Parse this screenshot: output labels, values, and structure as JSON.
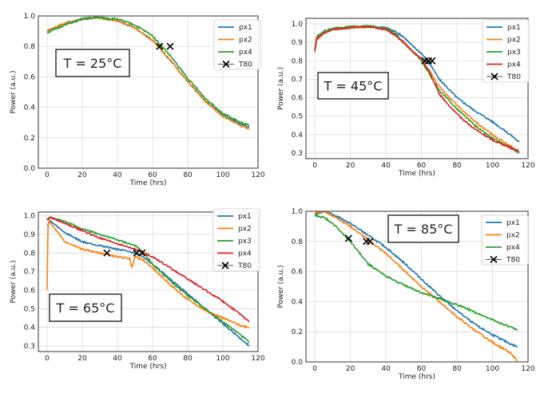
{
  "chart_data": [
    {
      "type": "line",
      "title": "T = 25°C",
      "xlabel": "Time (hrs)",
      "ylabel": "Power (a.u.)",
      "xlim": [
        -5,
        120
      ],
      "ylim": [
        0.0,
        1.0
      ],
      "xticks": [
        "0",
        "20",
        "40",
        "60",
        "80",
        "100",
        "120"
      ],
      "yticks": [
        "0.0",
        "0.2",
        "0.4",
        "0.6",
        "0.8",
        "1.0"
      ],
      "legend_location": "top-right",
      "series": [
        {
          "name": "px1",
          "color": "#1f77b4",
          "x": [
            0,
            10,
            20,
            28,
            40,
            50,
            60,
            70,
            80,
            90,
            100,
            110,
            115
          ],
          "y": [
            0.9,
            0.95,
            0.98,
            0.99,
            0.97,
            0.92,
            0.84,
            0.71,
            0.57,
            0.44,
            0.35,
            0.29,
            0.27
          ]
        },
        {
          "name": "px2",
          "color": "#ff7f0e",
          "x": [
            0,
            10,
            20,
            28,
            40,
            50,
            60,
            70,
            80,
            90,
            100,
            110,
            115
          ],
          "y": [
            0.9,
            0.95,
            0.98,
            0.99,
            0.97,
            0.92,
            0.84,
            0.71,
            0.57,
            0.44,
            0.34,
            0.28,
            0.26
          ]
        },
        {
          "name": "px4",
          "color": "#2ca02c",
          "x": [
            0,
            10,
            20,
            28,
            40,
            50,
            60,
            70,
            80,
            90,
            100,
            110,
            115
          ],
          "y": [
            0.89,
            0.94,
            0.98,
            0.99,
            0.98,
            0.94,
            0.87,
            0.74,
            0.59,
            0.46,
            0.36,
            0.3,
            0.28
          ]
        }
      ],
      "t80": {
        "name": "T80",
        "x": [
          64,
          70
        ],
        "y": [
          0.8,
          0.8
        ]
      }
    },
    {
      "type": "line",
      "title": "T = 45°C",
      "xlabel": "Time (hrs)",
      "ylabel": "Power (a.u.)",
      "xlim": [
        -5,
        120
      ],
      "ylim": [
        0.27,
        1.03
      ],
      "xticks": [
        "0",
        "20",
        "40",
        "60",
        "80",
        "100",
        "120"
      ],
      "yticks": [
        "0.3",
        "0.4",
        "0.5",
        "0.6",
        "0.7",
        "0.8",
        "0.9",
        "1.0"
      ],
      "legend_location": "top-right",
      "series": [
        {
          "name": "px1",
          "color": "#1f77b4",
          "x": [
            0,
            1,
            5,
            10,
            20,
            30,
            40,
            45,
            50,
            55,
            60,
            65,
            70,
            80,
            90,
            100,
            110,
            115
          ],
          "y": [
            0.85,
            0.92,
            0.95,
            0.97,
            0.98,
            0.985,
            0.98,
            0.96,
            0.93,
            0.88,
            0.84,
            0.78,
            0.7,
            0.6,
            0.53,
            0.47,
            0.4,
            0.36
          ]
        },
        {
          "name": "px2",
          "color": "#ff7f0e",
          "x": [
            0,
            1,
            5,
            10,
            20,
            30,
            40,
            45,
            50,
            55,
            60,
            65,
            70,
            80,
            90,
            100,
            110,
            115
          ],
          "y": [
            0.85,
            0.91,
            0.95,
            0.97,
            0.98,
            0.985,
            0.97,
            0.94,
            0.9,
            0.85,
            0.81,
            0.74,
            0.66,
            0.56,
            0.47,
            0.4,
            0.34,
            0.31
          ]
        },
        {
          "name": "px3",
          "color": "#2ca02c",
          "x": [
            0,
            1,
            5,
            10,
            20,
            30,
            40,
            45,
            50,
            55,
            60,
            65,
            70,
            80,
            90,
            100,
            110,
            115
          ],
          "y": [
            0.86,
            0.93,
            0.96,
            0.975,
            0.985,
            0.99,
            0.975,
            0.95,
            0.9,
            0.85,
            0.8,
            0.72,
            0.64,
            0.54,
            0.45,
            0.38,
            0.33,
            0.3
          ]
        },
        {
          "name": "px4",
          "color": "#d62728",
          "x": [
            0,
            1,
            5,
            10,
            20,
            30,
            40,
            45,
            50,
            55,
            60,
            65,
            70,
            80,
            90,
            100,
            110,
            115
          ],
          "y": [
            0.85,
            0.92,
            0.95,
            0.97,
            0.98,
            0.985,
            0.97,
            0.94,
            0.9,
            0.85,
            0.81,
            0.73,
            0.62,
            0.51,
            0.43,
            0.37,
            0.33,
            0.31
          ]
        }
      ],
      "t80": {
        "name": "T80",
        "x": [
          62,
          64,
          66
        ],
        "y": [
          0.8,
          0.8,
          0.8
        ]
      }
    },
    {
      "type": "line",
      "title": "T = 65°C",
      "xlabel": "Time (hrs)",
      "ylabel": "Power (a.u.)",
      "xlim": [
        -5,
        120
      ],
      "ylim": [
        0.27,
        1.02
      ],
      "xticks": [
        "0",
        "20",
        "40",
        "60",
        "80",
        "100",
        "120"
      ],
      "yticks": [
        "0.3",
        "0.4",
        "0.5",
        "0.6",
        "0.7",
        "0.8",
        "0.9",
        "1.0"
      ],
      "legend_location": "top-right",
      "series": [
        {
          "name": "px1",
          "color": "#1f77b4",
          "x": [
            0,
            2,
            10,
            20,
            30,
            40,
            50,
            55,
            60,
            70,
            80,
            90,
            100,
            110,
            115
          ],
          "y": [
            0.95,
            0.97,
            0.91,
            0.86,
            0.84,
            0.82,
            0.8,
            0.78,
            0.74,
            0.66,
            0.58,
            0.5,
            0.42,
            0.34,
            0.3
          ]
        },
        {
          "name": "px2",
          "color": "#ff7f0e",
          "x": [
            0,
            0.5,
            1,
            2,
            10,
            20,
            30,
            40,
            47,
            48,
            50,
            55,
            60,
            70,
            80,
            90,
            100,
            110,
            115
          ],
          "y": [
            0.6,
            0.92,
            0.98,
            0.96,
            0.86,
            0.82,
            0.8,
            0.78,
            0.77,
            0.72,
            0.78,
            0.76,
            0.72,
            0.63,
            0.55,
            0.49,
            0.45,
            0.41,
            0.4
          ]
        },
        {
          "name": "px3",
          "color": "#2ca02c",
          "x": [
            0,
            2,
            10,
            20,
            30,
            40,
            50,
            55,
            60,
            70,
            80,
            90,
            100,
            110,
            115
          ],
          "y": [
            0.98,
            0.99,
            0.97,
            0.93,
            0.9,
            0.87,
            0.84,
            0.8,
            0.74,
            0.65,
            0.57,
            0.5,
            0.43,
            0.36,
            0.32
          ]
        },
        {
          "name": "px4",
          "color": "#d62728",
          "x": [
            0,
            2,
            10,
            20,
            30,
            40,
            50,
            55,
            60,
            70,
            80,
            90,
            100,
            110,
            115
          ],
          "y": [
            0.98,
            0.99,
            0.96,
            0.92,
            0.88,
            0.85,
            0.82,
            0.8,
            0.78,
            0.72,
            0.66,
            0.6,
            0.54,
            0.47,
            0.43
          ]
        }
      ],
      "t80": {
        "name": "T80",
        "x": [
          34,
          51,
          54
        ],
        "y": [
          0.8,
          0.8,
          0.8
        ]
      }
    },
    {
      "type": "line",
      "title": "T = 85°C",
      "xlabel": "Time (hrs)",
      "ylabel": "Power (a.u.)",
      "xlim": [
        -5,
        120
      ],
      "ylim": [
        0.0,
        1.0
      ],
      "xticks": [
        "0",
        "20",
        "40",
        "60",
        "80",
        "100",
        "120"
      ],
      "yticks": [
        "0.0",
        "0.2",
        "0.4",
        "0.6",
        "0.8",
        "1.0"
      ],
      "legend_location": "top-right",
      "series": [
        {
          "name": "px1",
          "color": "#1f77b4",
          "x": [
            0,
            5,
            10,
            20,
            30,
            40,
            50,
            60,
            70,
            80,
            90,
            100,
            110,
            114
          ],
          "y": [
            0.98,
            1.0,
            0.98,
            0.92,
            0.84,
            0.76,
            0.66,
            0.55,
            0.44,
            0.34,
            0.25,
            0.18,
            0.12,
            0.1
          ]
        },
        {
          "name": "px2",
          "color": "#ff7f0e",
          "x": [
            0,
            5,
            10,
            20,
            30,
            40,
            50,
            60,
            70,
            80,
            90,
            100,
            110,
            114
          ],
          "y": [
            0.99,
            1.0,
            0.97,
            0.9,
            0.81,
            0.72,
            0.61,
            0.5,
            0.4,
            0.3,
            0.21,
            0.13,
            0.06,
            0.01
          ]
        },
        {
          "name": "px4",
          "color": "#2ca02c",
          "x": [
            0,
            5,
            10,
            20,
            30,
            40,
            50,
            60,
            70,
            80,
            90,
            100,
            110,
            114
          ],
          "y": [
            0.97,
            0.96,
            0.92,
            0.8,
            0.65,
            0.57,
            0.51,
            0.46,
            0.42,
            0.38,
            0.33,
            0.28,
            0.23,
            0.21
          ]
        }
      ],
      "t80": {
        "name": "T80",
        "x": [
          19,
          29,
          31
        ],
        "y": [
          0.82,
          0.8,
          0.8
        ]
      }
    }
  ]
}
